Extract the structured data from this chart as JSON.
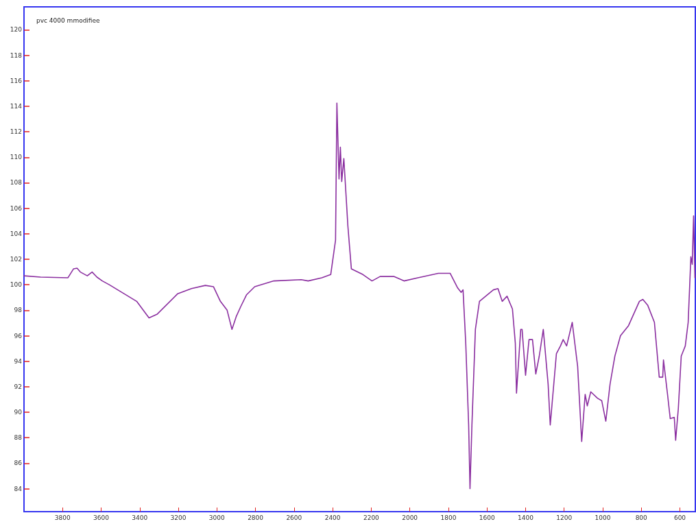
{
  "chart_data": {
    "type": "line",
    "title": "pvc 4000 mmodifiee",
    "x": [
      4000,
      3914,
      3772,
      3743,
      3725,
      3708,
      3672,
      3647,
      3622,
      3594,
      3558,
      3416,
      3352,
      3309,
      3203,
      3132,
      3060,
      3018,
      2982,
      2947,
      2922,
      2900,
      2876,
      2847,
      2804,
      2705,
      2563,
      2527,
      2456,
      2410,
      2385,
      2378,
      2367,
      2360,
      2353,
      2342,
      2321,
      2303,
      2243,
      2196,
      2154,
      2083,
      2030,
      1958,
      1852,
      1791,
      1752,
      1734,
      1724,
      1710,
      1695,
      1688,
      1678,
      1660,
      1639,
      1567,
      1543,
      1521,
      1496,
      1468,
      1453,
      1447,
      1425,
      1418,
      1400,
      1382,
      1364,
      1347,
      1329,
      1308,
      1283,
      1272,
      1240,
      1219,
      1205,
      1187,
      1158,
      1130,
      1109,
      1091,
      1080,
      1062,
      1027,
      1005,
      984,
      962,
      937,
      908,
      866,
      810,
      792,
      767,
      732,
      707,
      689,
      685,
      664,
      650,
      629,
      622,
      608,
      593,
      572,
      557,
      543,
      536,
      529,
      522
    ],
    "series": [
      {
        "color": "#8b2fa0",
        "values": [
          100.7,
          100.6,
          100.55,
          101.25,
          101.3,
          101.0,
          100.7,
          101.0,
          100.6,
          100.3,
          100.0,
          98.7,
          97.4,
          97.7,
          99.3,
          99.7,
          99.95,
          99.85,
          98.7,
          98.0,
          96.5,
          97.5,
          98.3,
          99.2,
          99.85,
          100.3,
          100.4,
          100.3,
          100.55,
          100.8,
          103.5,
          114.25,
          108.3,
          110.8,
          108.1,
          109.9,
          104.6,
          101.25,
          100.8,
          100.3,
          100.65,
          100.65,
          100.3,
          100.55,
          100.9,
          100.9,
          99.75,
          99.4,
          99.6,
          95.4,
          89.0,
          84.0,
          89.0,
          96.5,
          98.7,
          99.6,
          99.7,
          98.7,
          99.1,
          98.1,
          95.4,
          91.5,
          96.5,
          96.5,
          92.9,
          95.7,
          95.7,
          93.0,
          94.4,
          96.5,
          92.2,
          89.0,
          94.6,
          95.2,
          95.7,
          95.2,
          97.05,
          93.6,
          87.7,
          91.4,
          90.5,
          91.6,
          91.1,
          90.9,
          89.3,
          92.2,
          94.4,
          96.0,
          96.8,
          98.7,
          98.85,
          98.4,
          97.05,
          92.75,
          92.75,
          94.1,
          91.4,
          89.5,
          89.6,
          87.8,
          90.3,
          94.4,
          95.2,
          97.05,
          102.2,
          101.6,
          105.4,
          100.55
        ]
      }
    ],
    "xlim": [
      4000,
      520
    ],
    "xticks": [
      3800,
      3600,
      3400,
      3200,
      3000,
      2800,
      2600,
      2400,
      2200,
      2000,
      1800,
      1600,
      1400,
      1200,
      1000,
      800,
      600
    ],
    "ylim": [
      82.2,
      121.8
    ],
    "yticks": [
      84,
      86,
      88,
      90,
      92,
      94,
      96,
      98,
      100,
      102,
      104,
      106,
      108,
      110,
      112,
      114,
      116,
      118,
      120
    ],
    "grid": false,
    "marker": "none"
  }
}
